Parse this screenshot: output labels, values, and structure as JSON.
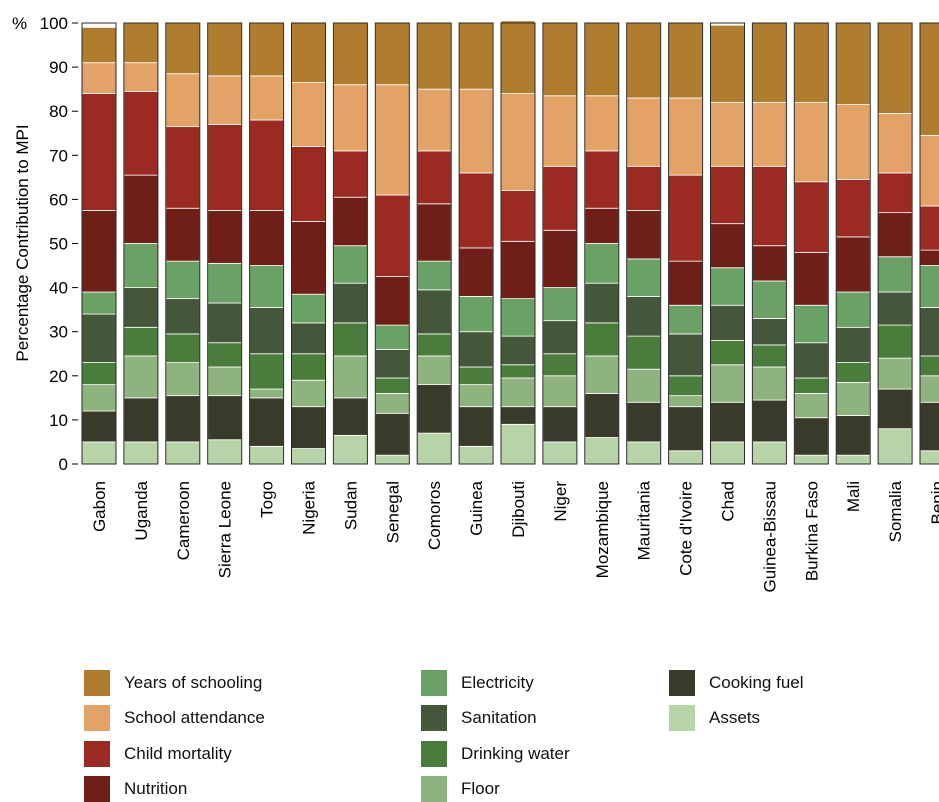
{
  "chart_data": {
    "type": "bar",
    "stacked": true,
    "ylabel": "Percentage Contribution to MPI",
    "yunit_label": "%",
    "ylim": [
      0,
      100
    ],
    "yticks": [
      0,
      10,
      20,
      30,
      40,
      50,
      60,
      70,
      80,
      90,
      100
    ],
    "grid": false,
    "legend_position": "bottom",
    "categories": [
      "Gabon",
      "Uganda",
      "Cameroon",
      "Sierra Leone",
      "Togo",
      "Nigeria",
      "Sudan",
      "Senegal",
      "Comoros",
      "Guinea",
      "Djibouti",
      "Niger",
      "Mozambique",
      "Mauritania",
      "Cote d'Ivoire",
      "Chad",
      "Guinea-Bissau",
      "Burkina Faso",
      "Mali",
      "Somalia",
      "Benin"
    ],
    "series": [
      {
        "name": "Assets",
        "color": "#b9d3a8",
        "values": [
          5,
          5,
          5,
          5.5,
          4,
          3.5,
          6.5,
          2,
          7,
          4,
          9,
          5,
          6,
          5,
          3,
          5,
          5,
          2,
          2,
          8,
          3
        ]
      },
      {
        "name": "Cooking fuel",
        "color": "#3a3a2a",
        "values": [
          7,
          10,
          10.5,
          10,
          11,
          9.5,
          8.5,
          9.5,
          11,
          9,
          4,
          8,
          10,
          9,
          10,
          9,
          9.5,
          8.5,
          9,
          9,
          11
        ]
      },
      {
        "name": "Floor",
        "color": "#8fb37e",
        "values": [
          6,
          9.5,
          7.5,
          6.5,
          2,
          6,
          9.5,
          4.5,
          6.5,
          5,
          6.5,
          7,
          8.5,
          7.5,
          2.5,
          8.5,
          7.5,
          5.5,
          7.5,
          7,
          6
        ]
      },
      {
        "name": "Drinking water",
        "color": "#4a7d3c",
        "values": [
          5,
          6.5,
          6.5,
          5.5,
          8,
          6,
          7.5,
          3.5,
          5,
          4,
          3,
          5,
          7.5,
          7.5,
          4.5,
          5.5,
          5,
          3.5,
          4.5,
          7.5,
          4.5
        ]
      },
      {
        "name": "Sanitation",
        "color": "#45573a",
        "values": [
          11,
          9,
          8,
          9,
          10.5,
          7,
          9,
          6.5,
          10,
          8,
          6.5,
          7.5,
          9,
          9,
          9.5,
          8,
          6,
          8,
          8,
          7.5,
          11
        ]
      },
      {
        "name": "Electricity",
        "color": "#6aa164",
        "values": [
          5,
          10,
          8.5,
          9,
          9.5,
          6.5,
          8.5,
          5.5,
          6.5,
          8,
          8.5,
          7.5,
          9,
          8.5,
          6.5,
          8.5,
          8.5,
          8.5,
          8,
          8,
          9.5
        ]
      },
      {
        "name": "Nutrition",
        "color": "#6f1e18",
        "values": [
          18.5,
          15.5,
          12,
          12,
          12.5,
          16.5,
          11,
          11,
          13,
          11,
          13,
          13,
          8,
          11,
          10,
          10,
          8,
          12,
          12.5,
          10,
          3.5
        ]
      },
      {
        "name": "Child mortality",
        "color": "#9a2a22",
        "values": [
          26.5,
          19,
          18.5,
          19.5,
          20.5,
          17,
          10.5,
          18.5,
          12,
          17,
          11.5,
          14.5,
          13,
          10,
          19.5,
          13,
          18,
          16,
          13,
          9,
          10
        ]
      },
      {
        "name": "School attendance",
        "color": "#e4a366",
        "values": [
          7,
          6.5,
          12,
          11,
          10,
          14.5,
          15,
          25,
          14,
          19,
          22,
          16,
          12.5,
          15.5,
          17.5,
          14.5,
          14.5,
          18,
          17,
          13.5,
          16
        ]
      },
      {
        "name": "Years of schooling",
        "color": "#b07d2e",
        "values": [
          8,
          9,
          11.5,
          12,
          12,
          13.5,
          14,
          14,
          15,
          15,
          16.5,
          16.5,
          16.5,
          17,
          17,
          17.5,
          18,
          18,
          18.5,
          20.5,
          25.5
        ]
      }
    ],
    "legend_order": [
      "Years of schooling",
      "School attendance",
      "Child mortality",
      "Nutrition",
      "Electricity",
      "Sanitation",
      "Drinking water",
      "Floor",
      "Cooking fuel",
      "Assets"
    ]
  }
}
